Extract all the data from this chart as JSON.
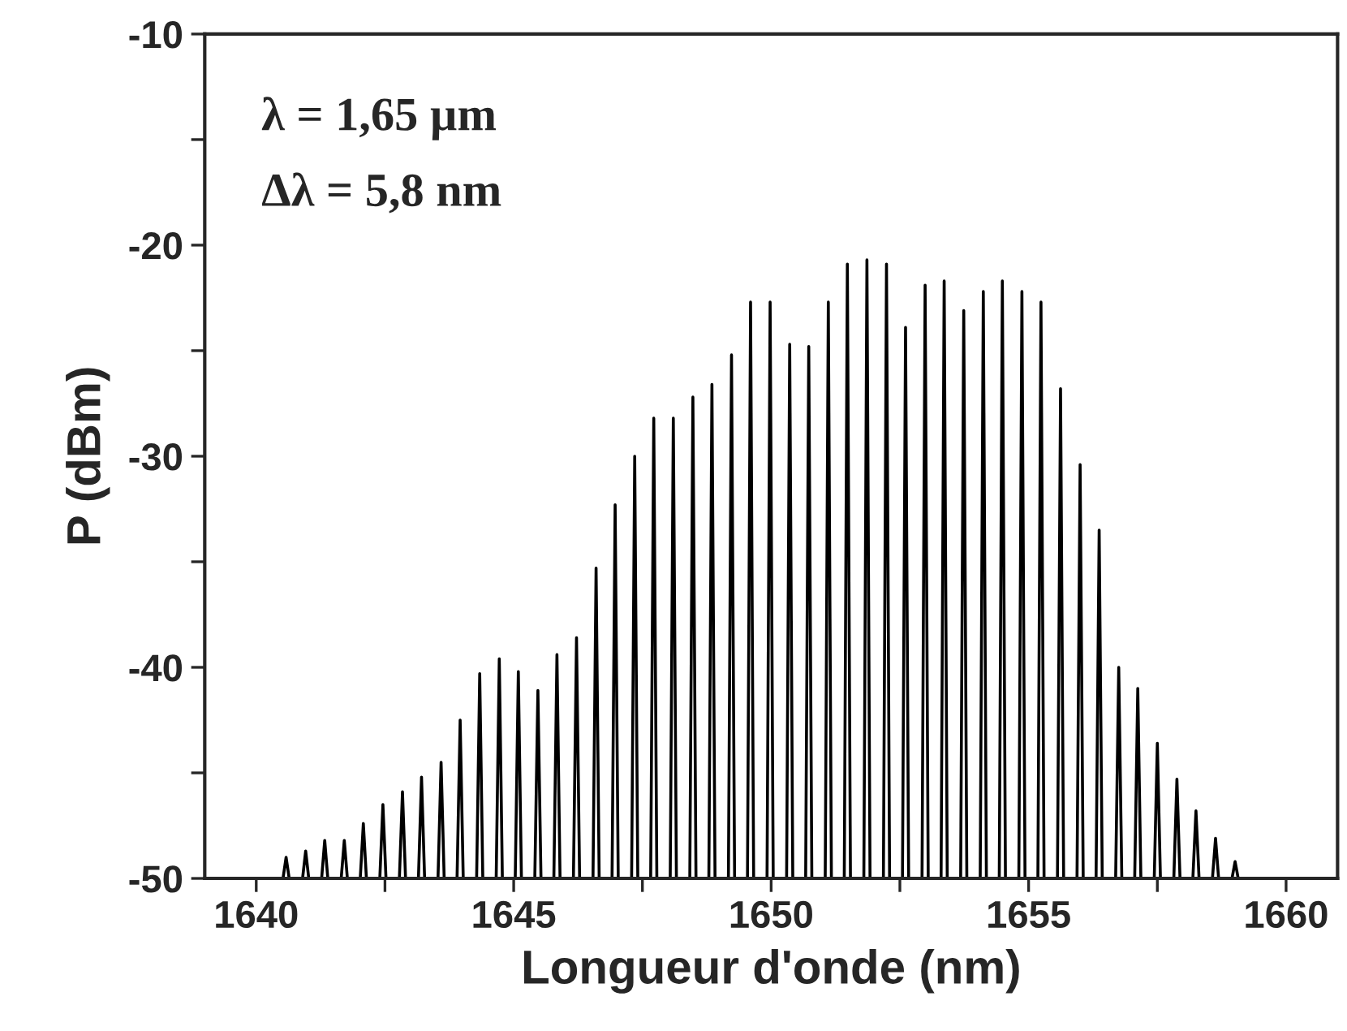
{
  "chart_data": {
    "type": "line",
    "xlabel": "Longueur d'onde (nm)",
    "ylabel": "P (dBm)",
    "annotations": [
      "λ = 1,65 µm",
      "Δλ = 5,8 nm"
    ],
    "series": [
      {
        "color": "#000000",
        "x": [
          1640.52,
          1640.58,
          1640.64,
          1640.9,
          1640.96,
          1641.02,
          1641.27,
          1641.33,
          1641.39,
          1641.65,
          1641.71,
          1641.77,
          1642.02,
          1642.08,
          1642.14,
          1642.4,
          1642.46,
          1642.52,
          1642.78,
          1642.84,
          1642.9,
          1643.15,
          1643.21,
          1643.27,
          1643.53,
          1643.59,
          1643.65,
          1643.9,
          1643.96,
          1644.02,
          1644.28,
          1644.34,
          1644.4,
          1644.66,
          1644.72,
          1644.78,
          1645.03,
          1645.09,
          1645.15,
          1645.41,
          1645.47,
          1645.53,
          1645.78,
          1645.84,
          1645.9,
          1646.16,
          1646.22,
          1646.28,
          1646.54,
          1646.6,
          1646.66,
          1646.91,
          1646.97,
          1647.03,
          1647.29,
          1647.35,
          1647.41,
          1647.66,
          1647.72,
          1647.78,
          1648.04,
          1648.1,
          1648.16,
          1648.42,
          1648.48,
          1648.54,
          1648.79,
          1648.85,
          1648.91,
          1649.17,
          1649.23,
          1649.29,
          1649.54,
          1649.6,
          1649.66,
          1649.92,
          1649.98,
          1650.04,
          1650.3,
          1650.36,
          1650.42,
          1650.67,
          1650.73,
          1650.79,
          1651.05,
          1651.11,
          1651.17,
          1651.42,
          1651.48,
          1651.54,
          1651.8,
          1651.86,
          1651.92,
          1652.18,
          1652.24,
          1652.3,
          1652.55,
          1652.61,
          1652.67,
          1652.93,
          1652.99,
          1653.05,
          1653.3,
          1653.36,
          1653.42,
          1653.68,
          1653.74,
          1653.8,
          1654.06,
          1654.12,
          1654.18,
          1654.43,
          1654.49,
          1654.55,
          1654.81,
          1654.87,
          1654.93,
          1655.18,
          1655.24,
          1655.3,
          1655.56,
          1655.62,
          1655.68,
          1655.94,
          1656.0,
          1656.06,
          1656.31,
          1656.37,
          1656.43,
          1656.69,
          1656.75,
          1656.81,
          1657.06,
          1657.12,
          1657.18,
          1657.44,
          1657.5,
          1657.56,
          1657.82,
          1657.88,
          1657.94,
          1658.19,
          1658.25,
          1658.31,
          1658.57,
          1658.63,
          1658.69,
          1658.95,
          1659.01,
          1659.07
        ],
        "values": [
          -50,
          -49.0,
          -50,
          -50,
          -48.7,
          -50,
          -50,
          -48.2,
          -50,
          -50,
          -48.2,
          -50,
          -50,
          -47.4,
          -50,
          -50,
          -46.5,
          -50,
          -50,
          -45.9,
          -50,
          -50,
          -45.2,
          -50,
          -50,
          -44.5,
          -50,
          -50,
          -42.5,
          -50,
          -50,
          -40.3,
          -50,
          -50,
          -39.6,
          -50,
          -50,
          -40.2,
          -50,
          -50,
          -41.1,
          -50,
          -50,
          -39.4,
          -50,
          -50,
          -38.6,
          -50,
          -50,
          -35.3,
          -50,
          -50,
          -32.3,
          -50,
          -50,
          -30.0,
          -50,
          -50,
          -28.2,
          -50,
          -50,
          -28.2,
          -50,
          -50,
          -27.2,
          -50,
          -50,
          -26.6,
          -50,
          -50,
          -25.2,
          -50,
          -50,
          -22.7,
          -50,
          -50,
          -22.7,
          -50,
          -50,
          -24.7,
          -50,
          -50,
          -24.8,
          -50,
          -50,
          -22.7,
          -50,
          -50,
          -20.9,
          -50,
          -50,
          -20.7,
          -50,
          -50,
          -20.9,
          -50,
          -50,
          -23.9,
          -50,
          -50,
          -21.9,
          -50,
          -50,
          -21.7,
          -50,
          -50,
          -23.1,
          -50,
          -50,
          -22.2,
          -50,
          -50,
          -21.7,
          -50,
          -50,
          -22.2,
          -50,
          -50,
          -22.7,
          -50,
          -50,
          -26.8,
          -50,
          -50,
          -30.4,
          -50,
          -50,
          -33.5,
          -50,
          -50,
          -40.0,
          -50,
          -50,
          -41.0,
          -50,
          -50,
          -43.6,
          -50,
          -50,
          -45.3,
          -50,
          -50,
          -46.8,
          -50,
          -50,
          -48.1,
          -50,
          -50,
          -49.2,
          -50
        ]
      }
    ],
    "xlim": [
      1639,
      1661
    ],
    "xticks": [
      1640,
      {
        "value": 1642.5,
        "label": null
      },
      1645,
      {
        "value": 1647.5,
        "label": null
      },
      1650,
      {
        "value": 1652.5,
        "label": null
      },
      1655,
      {
        "value": 1657.5,
        "label": null
      },
      1660
    ],
    "ylim": [
      -50,
      -10
    ],
    "yticks": [
      -50,
      {
        "value": -45,
        "label": null
      },
      -40,
      {
        "value": -35,
        "label": null
      },
      -30,
      {
        "value": -25,
        "label": null
      },
      -20,
      {
        "value": -15,
        "label": null
      },
      -10
    ],
    "grid": false,
    "legend": false,
    "marker": "none",
    "line_style": "solid"
  }
}
